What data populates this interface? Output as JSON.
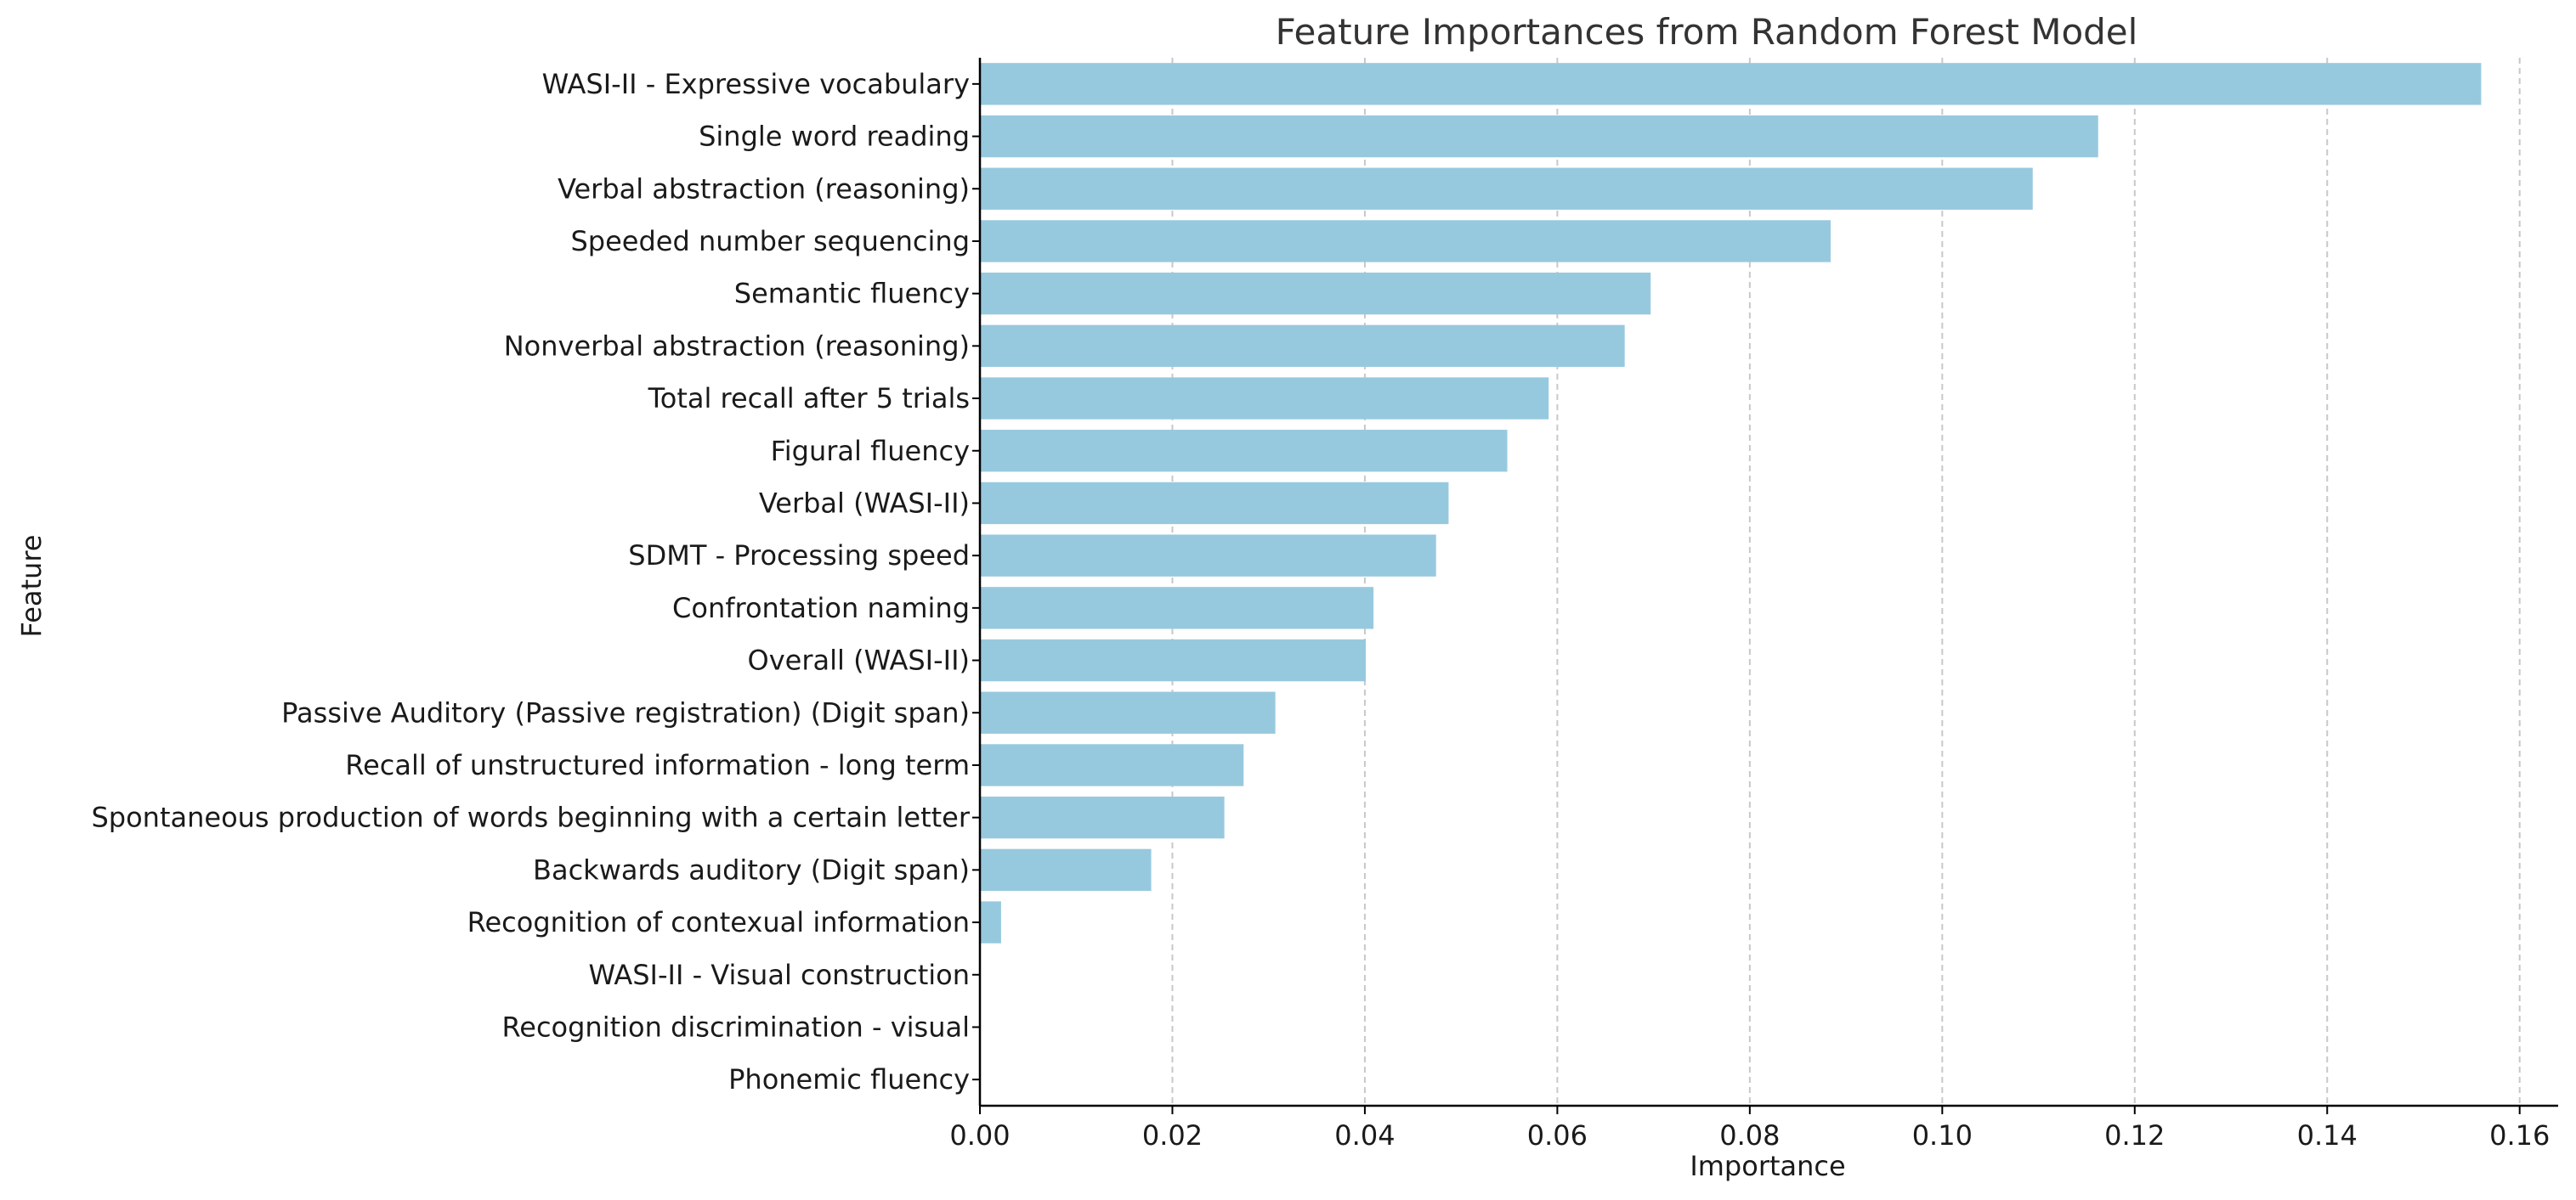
{
  "chart_data": {
    "type": "bar",
    "orientation": "horizontal",
    "title": "Feature Importances from Random Forest Model",
    "xlabel": "Importance",
    "ylabel": "Feature",
    "xlim": [
      0,
      0.164
    ],
    "xticks": [
      0.0,
      0.02,
      0.04,
      0.06,
      0.08,
      0.1,
      0.12,
      0.14,
      0.16
    ],
    "xtick_labels": [
      "0.00",
      "0.02",
      "0.04",
      "0.06",
      "0.08",
      "0.10",
      "0.12",
      "0.14",
      "0.16"
    ],
    "grid": "x-dashed",
    "bar_color": "#97c9de",
    "categories": [
      "WASI-II - Expressive vocabulary",
      "Single word reading",
      "Verbal abstraction (reasoning)",
      "Speeded number sequencing",
      "Semantic fluency",
      "Nonverbal abstraction (reasoning)",
      "Total recall after 5 trials",
      "Figural fluency",
      "Verbal (WASI-II)",
      "SDMT - Processing speed",
      "Confrontation naming",
      "Overall (WASI-II)",
      "Passive Auditory (Passive registration) (Digit span)",
      "Recall of unstructured information - long term",
      "Spontaneous production of words beginning with a certain letter",
      "Backwards auditory (Digit span)",
      "Recognition of contexual information",
      "WASI-II - Visual construction",
      "Recognition discrimination - visual",
      "Phonemic fluency"
    ],
    "values": [
      0.156,
      0.1162,
      0.1094,
      0.0884,
      0.0697,
      0.067,
      0.0591,
      0.0548,
      0.0487,
      0.0474,
      0.0409,
      0.0401,
      0.0307,
      0.0274,
      0.0254,
      0.0178,
      0.0022,
      0.0,
      0.0,
      0.0
    ]
  }
}
